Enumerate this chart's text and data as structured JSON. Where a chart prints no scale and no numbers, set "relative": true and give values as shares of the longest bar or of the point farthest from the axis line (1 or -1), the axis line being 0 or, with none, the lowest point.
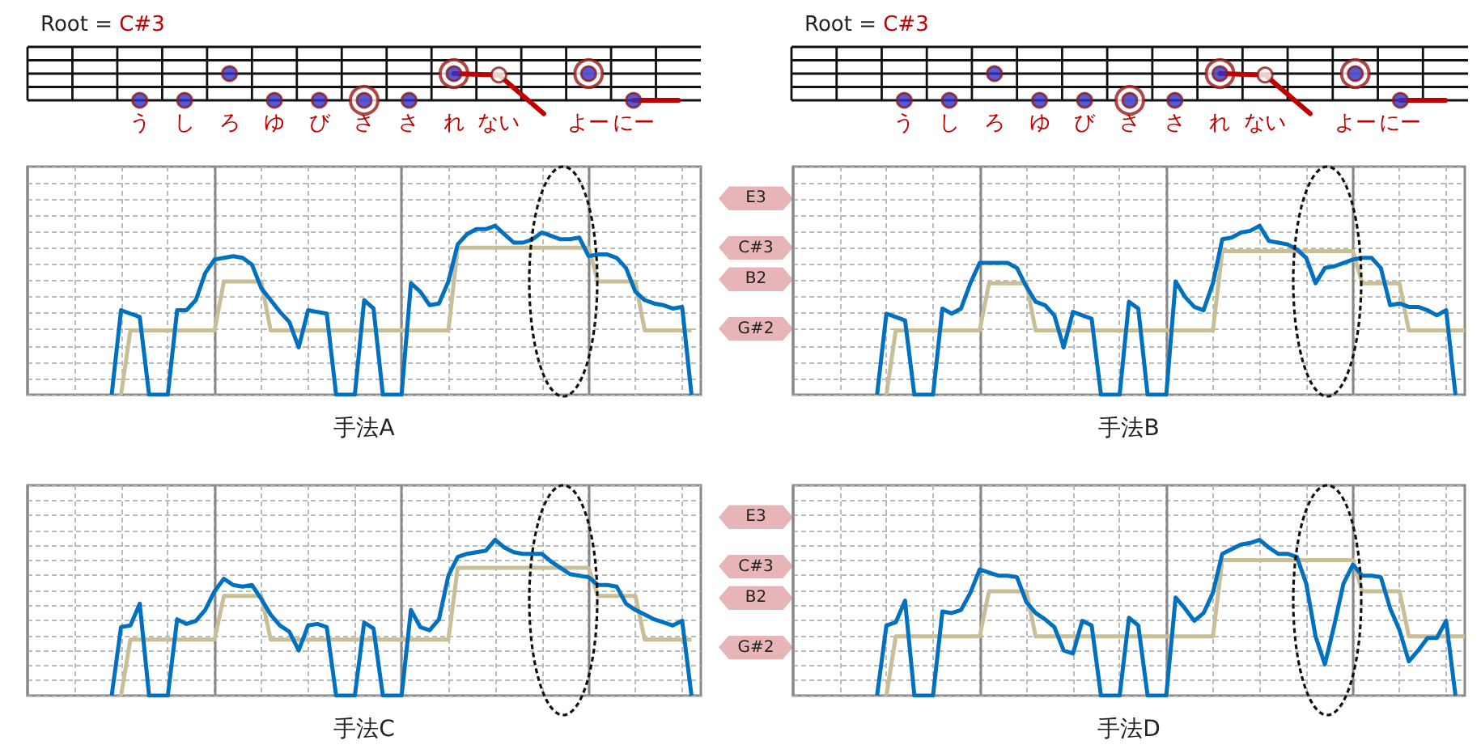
{
  "chart_data": [
    {
      "type": "scatter",
      "title": "Root = C#3",
      "relative": true,
      "marker": "circle",
      "categories": [
        null,
        null,
        "う",
        "し",
        "ろ",
        "ゆ",
        "び",
        "さ",
        "さ",
        "れ",
        "ない",
        null,
        "よー",
        "にー",
        null
      ],
      "series": [
        {
          "type": "scatter",
          "color": "#3030c8",
          "values": [
            null,
            null,
            0,
            0,
            1,
            0,
            0,
            0,
            0,
            1,
            0.95,
            null,
            1,
            0,
            null
          ],
          "colors": [
            null,
            null,
            "#3030c8",
            "#3030c8",
            "#3030c8",
            "#3030c8",
            "#3030c8",
            "#3030c8",
            "#3030c8",
            "#3030c8",
            "#ffffff",
            null,
            "#3030c8",
            "#3030c8",
            null
          ]
        },
        {
          "type": "scatter",
          "color": "#9a1a1a",
          "values": [
            null,
            null,
            null,
            null,
            null,
            null,
            null,
            0,
            null,
            1,
            null,
            null,
            1,
            null,
            null
          ]
        },
        {
          "type": "line",
          "color": "#c00000",
          "marker": "none",
          "values": [
            null,
            null,
            null,
            null,
            null,
            null,
            null,
            null,
            null,
            1,
            0.95,
            -0.5,
            null,
            0,
            0
          ]
        }
      ]
    },
    {
      "type": "scatter",
      "title": "Root = C#3",
      "relative": true,
      "marker": "circle",
      "categories": [
        null,
        null,
        "う",
        "し",
        "ろ",
        "ゆ",
        "び",
        "さ",
        "さ",
        "れ",
        "ない",
        null,
        "よー",
        "にー",
        null
      ],
      "series": [
        {
          "type": "scatter",
          "color": "#3030c8",
          "values": [
            null,
            null,
            0,
            0,
            1,
            0,
            0,
            0,
            0,
            1,
            0.95,
            null,
            1,
            0,
            null
          ],
          "colors": [
            null,
            null,
            "#3030c8",
            "#3030c8",
            "#3030c8",
            "#3030c8",
            "#3030c8",
            "#3030c8",
            "#3030c8",
            "#3030c8",
            "#ffffff",
            null,
            "#3030c8",
            "#3030c8",
            null
          ]
        },
        {
          "type": "scatter",
          "color": "#9a1a1a",
          "values": [
            null,
            null,
            null,
            null,
            null,
            null,
            null,
            0,
            null,
            1,
            null,
            null,
            1,
            null,
            null
          ]
        },
        {
          "type": "line",
          "color": "#c00000",
          "marker": "none",
          "values": [
            null,
            null,
            null,
            null,
            null,
            null,
            null,
            null,
            null,
            1,
            0.95,
            -0.5,
            null,
            0,
            0
          ]
        }
      ]
    },
    {
      "type": "line",
      "xlabel": "手法A",
      "relative": true,
      "grid": true,
      "annotations": [
        "E3",
        "C#3",
        "B2",
        "G#2"
      ],
      "categories": [
        null,
        null,
        null,
        null,
        null,
        null,
        null,
        null,
        null,
        null,
        null,
        null,
        null,
        null,
        null,
        null,
        null,
        null,
        null,
        null,
        null,
        null,
        null,
        null,
        null,
        null,
        null,
        null,
        null,
        null,
        null,
        null,
        null,
        null,
        null,
        null,
        null,
        null,
        null,
        null,
        null,
        null,
        null,
        null,
        null,
        null,
        null,
        null,
        null,
        null,
        null,
        null,
        null,
        null,
        null,
        null,
        null,
        null,
        null,
        null,
        null,
        null,
        null,
        null,
        null,
        null,
        null,
        null,
        null,
        null,
        null,
        null,
        null
      ],
      "series": [
        {
          "type": "step",
          "color": "#c8bf98",
          "values": [
            null,
            null,
            null,
            null,
            null,
            null,
            null,
            null,
            null,
            null,
            0,
            0.38,
            0.38,
            0.38,
            0.38,
            0.38,
            0.38,
            0.38,
            0.38,
            0.38,
            0.38,
            0.67,
            0.67,
            0.67,
            0.67,
            0.67,
            0.38,
            0.38,
            0.38,
            0.38,
            0.38,
            0.38,
            0.38,
            0.38,
            0.38,
            0.38,
            0.38,
            0.38,
            0.38,
            0.38,
            0.38,
            0.38,
            0.38,
            0.38,
            0.38,
            0.38,
            0.87,
            0.87,
            0.87,
            0.87,
            0.87,
            0.87,
            0.87,
            0.87,
            0.87,
            0.87,
            0.87,
            0.87,
            0.87,
            0.87,
            0.87,
            0.67,
            0.67,
            0.67,
            0.67,
            0.67,
            0.38,
            0.38,
            0.38,
            0.38,
            0.38,
            0.38,
            null
          ]
        },
        {
          "type": "line",
          "color": "#0070c0",
          "values": [
            null,
            null,
            null,
            null,
            null,
            null,
            null,
            null,
            null,
            0,
            0.5,
            0.48,
            0.46,
            0,
            0,
            0,
            0.5,
            0.5,
            0.56,
            0.72,
            0.8,
            0.81,
            0.82,
            0.81,
            0.77,
            0.63,
            0.56,
            0.49,
            0.43,
            0.28,
            0.5,
            0.49,
            0.48,
            0,
            0,
            0,
            0.56,
            0.51,
            0,
            0,
            0,
            0.66,
            0.61,
            0.53,
            0.54,
            0.67,
            0.89,
            0.95,
            0.98,
            0.98,
            1,
            0.95,
            0.9,
            0.9,
            0.92,
            0.96,
            0.94,
            0.92,
            0.92,
            0.93,
            0.82,
            0.83,
            0.83,
            0.81,
            0.75,
            0.61,
            0.56,
            0.54,
            0.53,
            0.51,
            0.52,
            0,
            null
          ]
        }
      ]
    },
    {
      "type": "line",
      "xlabel": "手法B",
      "relative": true,
      "grid": true,
      "categories": [
        null,
        null,
        null,
        null,
        null,
        null,
        null,
        null,
        null,
        null,
        null,
        null,
        null,
        null,
        null,
        null,
        null,
        null,
        null,
        null,
        null,
        null,
        null,
        null,
        null,
        null,
        null,
        null,
        null,
        null,
        null,
        null,
        null,
        null,
        null,
        null,
        null,
        null,
        null,
        null,
        null,
        null,
        null,
        null,
        null,
        null,
        null,
        null,
        null,
        null,
        null,
        null,
        null,
        null,
        null,
        null,
        null,
        null,
        null,
        null,
        null,
        null,
        null,
        null,
        null,
        null,
        null,
        null,
        null,
        null,
        null,
        null,
        null
      ],
      "series": [
        {
          "type": "step",
          "color": "#c8bf98",
          "values": [
            null,
            null,
            null,
            null,
            null,
            null,
            null,
            null,
            null,
            null,
            0,
            0.38,
            0.38,
            0.38,
            0.38,
            0.38,
            0.38,
            0.38,
            0.38,
            0.38,
            0.38,
            0.66,
            0.66,
            0.66,
            0.66,
            0.66,
            0.38,
            0.38,
            0.38,
            0.38,
            0.38,
            0.38,
            0.38,
            0.38,
            0.38,
            0.38,
            0.38,
            0.38,
            0.38,
            0.38,
            0.38,
            0.38,
            0.38,
            0.38,
            0.38,
            0.38,
            0.85,
            0.85,
            0.85,
            0.85,
            0.85,
            0.85,
            0.85,
            0.85,
            0.85,
            0.85,
            0.85,
            0.85,
            0.85,
            0.85,
            0.85,
            0.66,
            0.66,
            0.66,
            0.66,
            0.66,
            0.38,
            0.38,
            0.38,
            0.38,
            0.38,
            0.38,
            0.38
          ]
        },
        {
          "type": "line",
          "color": "#0070c0",
          "values": [
            null,
            null,
            null,
            null,
            null,
            null,
            null,
            null,
            null,
            0,
            0.48,
            0.46,
            0.44,
            0,
            0,
            0,
            0.51,
            0.48,
            0.51,
            0.66,
            0.78,
            0.78,
            0.78,
            0.78,
            0.75,
            0.64,
            0.55,
            0.53,
            0.47,
            0.28,
            0.49,
            0.47,
            0.45,
            0,
            0,
            0,
            0.55,
            0.51,
            0,
            0,
            0,
            0.67,
            0.58,
            0.52,
            0.5,
            0.66,
            0.92,
            0.93,
            0.96,
            0.97,
            1,
            0.91,
            0.9,
            0.89,
            0.86,
            0.81,
            0.66,
            0.75,
            0.76,
            0.78,
            0.8,
            0.81,
            0.81,
            0.75,
            0.53,
            0.54,
            0.52,
            0.52,
            0.5,
            0.47,
            0.5,
            0,
            null
          ]
        }
      ]
    },
    {
      "type": "line",
      "xlabel": "手法C",
      "relative": true,
      "grid": true,
      "annotations": [
        "E3",
        "C#3",
        "B2",
        "G#2"
      ],
      "categories": [
        null,
        null,
        null,
        null,
        null,
        null,
        null,
        null,
        null,
        null,
        null,
        null,
        null,
        null,
        null,
        null,
        null,
        null,
        null,
        null,
        null,
        null,
        null,
        null,
        null,
        null,
        null,
        null,
        null,
        null,
        null,
        null,
        null,
        null,
        null,
        null,
        null,
        null,
        null,
        null,
        null,
        null,
        null,
        null,
        null,
        null,
        null,
        null,
        null,
        null,
        null,
        null,
        null,
        null,
        null,
        null,
        null,
        null,
        null,
        null,
        null,
        null,
        null,
        null,
        null,
        null,
        null,
        null,
        null,
        null,
        null,
        null,
        null
      ],
      "series": [
        {
          "type": "step",
          "color": "#c8bf98",
          "values": [
            null,
            null,
            null,
            null,
            null,
            null,
            null,
            null,
            null,
            null,
            0,
            0.36,
            0.36,
            0.36,
            0.36,
            0.36,
            0.36,
            0.36,
            0.36,
            0.36,
            0.36,
            0.64,
            0.64,
            0.64,
            0.64,
            0.64,
            0.36,
            0.36,
            0.36,
            0.36,
            0.36,
            0.36,
            0.36,
            0.36,
            0.36,
            0.36,
            0.36,
            0.36,
            0.36,
            0.36,
            0.36,
            0.36,
            0.36,
            0.36,
            0.36,
            0.36,
            0.82,
            0.82,
            0.82,
            0.82,
            0.82,
            0.82,
            0.82,
            0.82,
            0.82,
            0.82,
            0.82,
            0.82,
            0.82,
            0.82,
            0.82,
            0.64,
            0.64,
            0.64,
            0.64,
            0.64,
            0.36,
            0.36,
            0.36,
            0.36,
            0.36,
            0.36,
            null
          ]
        },
        {
          "type": "line",
          "color": "#0070c0",
          "values": [
            null,
            null,
            null,
            null,
            null,
            null,
            null,
            null,
            null,
            0,
            0.44,
            0.45,
            0.59,
            0,
            0,
            0,
            0.49,
            0.46,
            0.48,
            0.55,
            0.67,
            0.75,
            0.71,
            0.7,
            0.71,
            0.62,
            0.52,
            0.45,
            0.41,
            0.29,
            0.45,
            0.46,
            0.44,
            0,
            0,
            0,
            0.47,
            0.43,
            0,
            0,
            0,
            0.55,
            0.44,
            0.42,
            0.49,
            0.77,
            0.89,
            0.91,
            0.92,
            0.93,
            1,
            0.95,
            0.92,
            0.91,
            0.91,
            0.91,
            0.86,
            0.82,
            0.78,
            0.77,
            0.76,
            0.71,
            0.71,
            0.7,
            0.59,
            0.55,
            0.52,
            0.49,
            0.47,
            0.45,
            0.48,
            0,
            null
          ]
        }
      ]
    },
    {
      "type": "line",
      "xlabel": "手法D",
      "relative": true,
      "grid": true,
      "categories": [
        null,
        null,
        null,
        null,
        null,
        null,
        null,
        null,
        null,
        null,
        null,
        null,
        null,
        null,
        null,
        null,
        null,
        null,
        null,
        null,
        null,
        null,
        null,
        null,
        null,
        null,
        null,
        null,
        null,
        null,
        null,
        null,
        null,
        null,
        null,
        null,
        null,
        null,
        null,
        null,
        null,
        null,
        null,
        null,
        null,
        null,
        null,
        null,
        null,
        null,
        null,
        null,
        null,
        null,
        null,
        null,
        null,
        null,
        null,
        null,
        null,
        null,
        null,
        null,
        null,
        null,
        null,
        null,
        null,
        null,
        null,
        null,
        null
      ],
      "series": [
        {
          "type": "step",
          "color": "#c8bf98",
          "values": [
            null,
            null,
            null,
            null,
            null,
            null,
            null,
            null,
            null,
            null,
            0,
            0.38,
            0.38,
            0.38,
            0.38,
            0.38,
            0.38,
            0.38,
            0.38,
            0.38,
            0.38,
            0.67,
            0.67,
            0.67,
            0.67,
            0.67,
            0.38,
            0.38,
            0.38,
            0.38,
            0.38,
            0.38,
            0.38,
            0.38,
            0.38,
            0.38,
            0.38,
            0.38,
            0.38,
            0.38,
            0.38,
            0.38,
            0.38,
            0.38,
            0.38,
            0.38,
            0.87,
            0.87,
            0.87,
            0.87,
            0.87,
            0.87,
            0.87,
            0.87,
            0.87,
            0.87,
            0.87,
            0.87,
            0.87,
            0.87,
            0.87,
            0.67,
            0.67,
            0.67,
            0.67,
            0.67,
            0.38,
            0.38,
            0.38,
            0.38,
            0.38,
            0.38,
            0.38
          ]
        },
        {
          "type": "line",
          "color": "#0070c0",
          "values": [
            null,
            null,
            null,
            null,
            null,
            null,
            null,
            null,
            null,
            0,
            0.45,
            0.47,
            0.61,
            0,
            0,
            0,
            0.54,
            0.53,
            0.55,
            0.66,
            0.81,
            0.79,
            0.77,
            0.77,
            0.76,
            0.6,
            0.53,
            0.49,
            0.44,
            0.29,
            0.27,
            0.48,
            0.45,
            0,
            0,
            0,
            0.5,
            0.45,
            0,
            0,
            0,
            0.63,
            0.56,
            0.48,
            0.53,
            0.66,
            0.91,
            0.94,
            0.97,
            0.98,
            1,
            0.95,
            0.91,
            0.91,
            0.89,
            0.72,
            0.38,
            0.2,
            0.45,
            0.72,
            0.84,
            0.77,
            0.77,
            0.76,
            0.56,
            0.42,
            0.22,
            0.29,
            0.37,
            0.37,
            0.48,
            0,
            null
          ]
        }
      ]
    }
  ]
}
